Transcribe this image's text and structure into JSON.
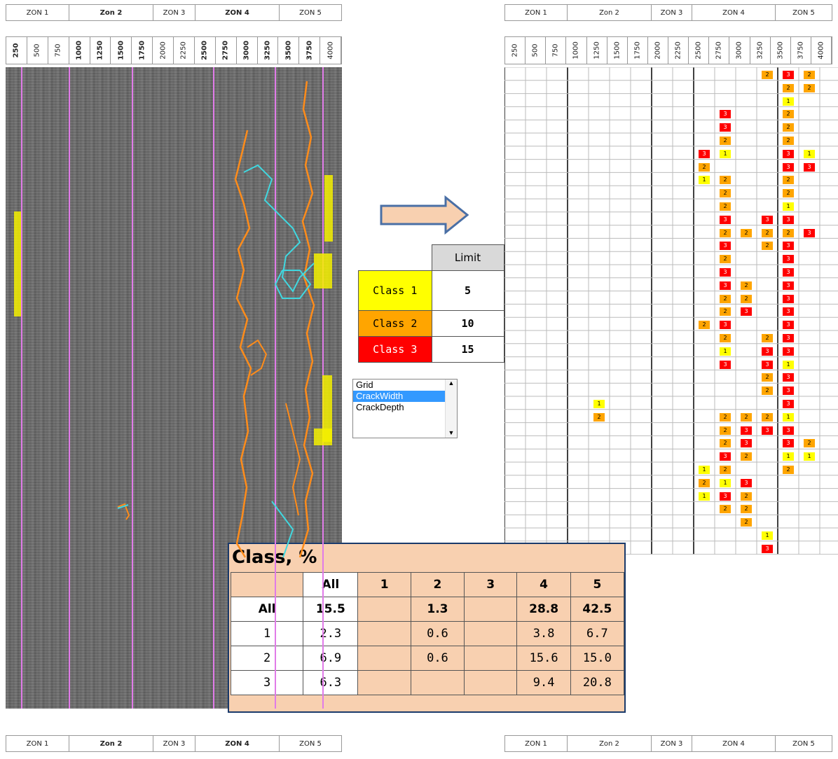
{
  "zones": [
    {
      "label": "ZON 1",
      "bold": false
    },
    {
      "label": "Zon 2",
      "bold": true
    },
    {
      "label": "ZON 3",
      "bold": false
    },
    {
      "label": "ZON 4",
      "bold": true
    },
    {
      "label": "ZON 5",
      "bold": false
    }
  ],
  "ticks": [
    "250",
    "500",
    "750",
    "1000",
    "1250",
    "1500",
    "1750",
    "2000",
    "2250",
    "2500",
    "2750",
    "3000",
    "3250",
    "3500",
    "3750",
    "4000"
  ],
  "limit_table": {
    "header": "Limit",
    "rows": [
      {
        "label": "Class 1",
        "value": "5",
        "color": "#ffff00"
      },
      {
        "label": "Class 2",
        "value": "10",
        "color": "#ffa500"
      },
      {
        "label": "Class 3",
        "value": "15",
        "color": "#ff0000"
      }
    ]
  },
  "layer_list": {
    "items": [
      "Grid",
      "CrackWidth",
      "CrackDepth"
    ],
    "selected": "CrackWidth"
  },
  "class_summary": {
    "title": "Class, %",
    "columns": [
      "All",
      "1",
      "2",
      "3",
      "4",
      "5"
    ],
    "rows": [
      {
        "label": "All",
        "values": [
          "15.5",
          "",
          "1.3",
          "",
          "28.8",
          "42.5"
        ]
      },
      {
        "label": "1",
        "values": [
          "2.3",
          "",
          "0.6",
          "",
          "3.8",
          "6.7"
        ]
      },
      {
        "label": "2",
        "values": [
          "6.9",
          "",
          "0.6",
          "",
          "15.6",
          "15.0"
        ]
      },
      {
        "label": "3",
        "values": [
          "6.3",
          "",
          "",
          "",
          "9.4",
          "20.8"
        ]
      }
    ]
  },
  "class_colors": {
    "1": "#ffff00",
    "2": "#ffa500",
    "3": "#ff0000"
  },
  "grid_cells": [
    {
      "row": 0,
      "col": 12,
      "cls": "2"
    },
    {
      "row": 0,
      "col": 13,
      "cls": "3"
    },
    {
      "row": 0,
      "col": 14,
      "cls": "2"
    },
    {
      "row": 1,
      "col": 13,
      "cls": "2"
    },
    {
      "row": 1,
      "col": 14,
      "cls": "2"
    },
    {
      "row": 2,
      "col": 13,
      "cls": "1"
    },
    {
      "row": 3,
      "col": 10,
      "cls": "3"
    },
    {
      "row": 3,
      "col": 13,
      "cls": "2"
    },
    {
      "row": 4,
      "col": 10,
      "cls": "3"
    },
    {
      "row": 4,
      "col": 13,
      "cls": "2"
    },
    {
      "row": 5,
      "col": 10,
      "cls": "2"
    },
    {
      "row": 5,
      "col": 13,
      "cls": "2"
    },
    {
      "row": 6,
      "col": 9,
      "cls": "3"
    },
    {
      "row": 6,
      "col": 10,
      "cls": "1"
    },
    {
      "row": 6,
      "col": 13,
      "cls": "3"
    },
    {
      "row": 6,
      "col": 14,
      "cls": "1"
    },
    {
      "row": 7,
      "col": 9,
      "cls": "2"
    },
    {
      "row": 7,
      "col": 13,
      "cls": "3"
    },
    {
      "row": 7,
      "col": 14,
      "cls": "3"
    },
    {
      "row": 8,
      "col": 9,
      "cls": "1"
    },
    {
      "row": 8,
      "col": 10,
      "cls": "2"
    },
    {
      "row": 8,
      "col": 13,
      "cls": "2"
    },
    {
      "row": 9,
      "col": 10,
      "cls": "2"
    },
    {
      "row": 9,
      "col": 13,
      "cls": "2"
    },
    {
      "row": 10,
      "col": 10,
      "cls": "2"
    },
    {
      "row": 10,
      "col": 13,
      "cls": "1"
    },
    {
      "row": 11,
      "col": 10,
      "cls": "3"
    },
    {
      "row": 11,
      "col": 12,
      "cls": "3"
    },
    {
      "row": 11,
      "col": 13,
      "cls": "3"
    },
    {
      "row": 12,
      "col": 10,
      "cls": "2"
    },
    {
      "row": 12,
      "col": 11,
      "cls": "2"
    },
    {
      "row": 12,
      "col": 12,
      "cls": "2"
    },
    {
      "row": 12,
      "col": 13,
      "cls": "2"
    },
    {
      "row": 12,
      "col": 14,
      "cls": "3"
    },
    {
      "row": 13,
      "col": 10,
      "cls": "3"
    },
    {
      "row": 13,
      "col": 12,
      "cls": "2"
    },
    {
      "row": 13,
      "col": 13,
      "cls": "3"
    },
    {
      "row": 14,
      "col": 10,
      "cls": "2"
    },
    {
      "row": 14,
      "col": 13,
      "cls": "3"
    },
    {
      "row": 15,
      "col": 10,
      "cls": "3"
    },
    {
      "row": 15,
      "col": 13,
      "cls": "3"
    },
    {
      "row": 16,
      "col": 10,
      "cls": "3"
    },
    {
      "row": 16,
      "col": 11,
      "cls": "2"
    },
    {
      "row": 16,
      "col": 13,
      "cls": "3"
    },
    {
      "row": 17,
      "col": 10,
      "cls": "2"
    },
    {
      "row": 17,
      "col": 11,
      "cls": "2"
    },
    {
      "row": 17,
      "col": 13,
      "cls": "3"
    },
    {
      "row": 18,
      "col": 10,
      "cls": "2"
    },
    {
      "row": 18,
      "col": 11,
      "cls": "3"
    },
    {
      "row": 18,
      "col": 13,
      "cls": "3"
    },
    {
      "row": 19,
      "col": 9,
      "cls": "2"
    },
    {
      "row": 19,
      "col": 10,
      "cls": "3"
    },
    {
      "row": 19,
      "col": 13,
      "cls": "3"
    },
    {
      "row": 20,
      "col": 10,
      "cls": "2"
    },
    {
      "row": 20,
      "col": 12,
      "cls": "2"
    },
    {
      "row": 20,
      "col": 13,
      "cls": "3"
    },
    {
      "row": 21,
      "col": 10,
      "cls": "1"
    },
    {
      "row": 21,
      "col": 12,
      "cls": "3"
    },
    {
      "row": 21,
      "col": 13,
      "cls": "3"
    },
    {
      "row": 22,
      "col": 10,
      "cls": "3"
    },
    {
      "row": 22,
      "col": 12,
      "cls": "3"
    },
    {
      "row": 22,
      "col": 13,
      "cls": "1"
    },
    {
      "row": 23,
      "col": 12,
      "cls": "2"
    },
    {
      "row": 23,
      "col": 13,
      "cls": "3"
    },
    {
      "row": 24,
      "col": 12,
      "cls": "2"
    },
    {
      "row": 24,
      "col": 13,
      "cls": "3"
    },
    {
      "row": 25,
      "col": 4,
      "cls": "1"
    },
    {
      "row": 25,
      "col": 13,
      "cls": "3"
    },
    {
      "row": 26,
      "col": 4,
      "cls": "2"
    },
    {
      "row": 26,
      "col": 10,
      "cls": "2"
    },
    {
      "row": 26,
      "col": 11,
      "cls": "2"
    },
    {
      "row": 26,
      "col": 12,
      "cls": "2"
    },
    {
      "row": 26,
      "col": 13,
      "cls": "1"
    },
    {
      "row": 27,
      "col": 10,
      "cls": "2"
    },
    {
      "row": 27,
      "col": 11,
      "cls": "3"
    },
    {
      "row": 27,
      "col": 12,
      "cls": "3"
    },
    {
      "row": 27,
      "col": 13,
      "cls": "3"
    },
    {
      "row": 28,
      "col": 10,
      "cls": "2"
    },
    {
      "row": 28,
      "col": 11,
      "cls": "3"
    },
    {
      "row": 28,
      "col": 13,
      "cls": "3"
    },
    {
      "row": 28,
      "col": 14,
      "cls": "2"
    },
    {
      "row": 29,
      "col": 10,
      "cls": "3"
    },
    {
      "row": 29,
      "col": 11,
      "cls": "2"
    },
    {
      "row": 29,
      "col": 13,
      "cls": "1"
    },
    {
      "row": 29,
      "col": 14,
      "cls": "1"
    },
    {
      "row": 30,
      "col": 9,
      "cls": "1"
    },
    {
      "row": 30,
      "col": 10,
      "cls": "2"
    },
    {
      "row": 30,
      "col": 13,
      "cls": "2"
    },
    {
      "row": 31,
      "col": 9,
      "cls": "2"
    },
    {
      "row": 31,
      "col": 10,
      "cls": "1"
    },
    {
      "row": 31,
      "col": 11,
      "cls": "3"
    },
    {
      "row": 32,
      "col": 9,
      "cls": "1"
    },
    {
      "row": 32,
      "col": 10,
      "cls": "3"
    },
    {
      "row": 32,
      "col": 11,
      "cls": "2"
    },
    {
      "row": 33,
      "col": 10,
      "cls": "2"
    },
    {
      "row": 33,
      "col": 11,
      "cls": "2"
    },
    {
      "row": 34,
      "col": 11,
      "cls": "2"
    },
    {
      "row": 35,
      "col": 12,
      "cls": "1"
    },
    {
      "row": 36,
      "col": 12,
      "cls": "3"
    }
  ]
}
